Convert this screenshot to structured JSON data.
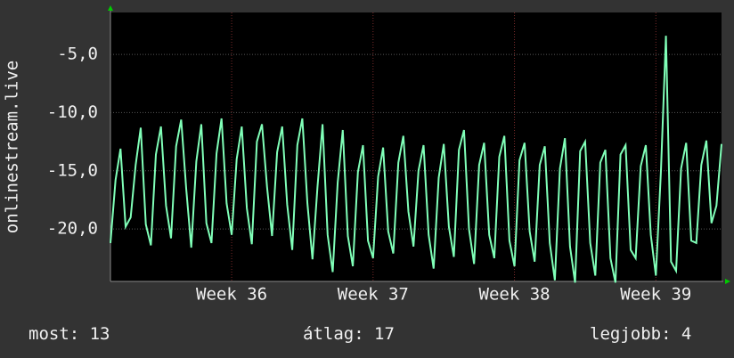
{
  "chart_data": {
    "type": "line",
    "y_label": "onlinestream.live",
    "ylim": [
      -24.5,
      -1.4
    ],
    "yticks": [
      {
        "value": -20,
        "label": "-20,0"
      },
      {
        "value": -15,
        "label": "-15,0"
      },
      {
        "value": -10,
        "label": "-10,0"
      },
      {
        "value": -5,
        "label": "-5,0"
      }
    ],
    "categories": [
      null,
      null,
      null,
      null,
      null,
      null,
      null,
      null,
      null,
      null,
      null,
      null,
      null,
      null,
      null,
      null,
      null,
      null,
      null,
      null,
      null,
      null,
      null,
      null,
      "Week 36",
      null,
      null,
      null,
      null,
      null,
      null,
      null,
      null,
      null,
      null,
      null,
      null,
      null,
      null,
      null,
      null,
      null,
      null,
      null,
      null,
      null,
      null,
      null,
      null,
      null,
      null,
      null,
      "Week 37",
      null,
      null,
      null,
      null,
      null,
      null,
      null,
      null,
      null,
      null,
      null,
      null,
      null,
      null,
      null,
      null,
      null,
      null,
      null,
      null,
      null,
      null,
      null,
      null,
      null,
      null,
      null,
      "Week 38",
      null,
      null,
      null,
      null,
      null,
      null,
      null,
      null,
      null,
      null,
      null,
      null,
      null,
      null,
      null,
      null,
      null,
      null,
      null,
      null,
      null,
      null,
      null,
      null,
      null,
      null,
      null,
      "Week 39",
      null,
      null,
      null,
      null,
      null,
      null,
      null,
      null,
      null,
      null,
      null,
      null,
      null
    ],
    "series": [
      {
        "color": "#80ffb8",
        "values": [
          -21.2,
          -15.8,
          -13.1,
          -19.8,
          -19.0,
          -14.5,
          -11.3,
          -19.6,
          -21.4,
          -13.6,
          -11.2,
          -18.0,
          -20.8,
          -12.9,
          -10.6,
          -16.5,
          -21.6,
          -14.2,
          -11.0,
          -19.5,
          -21.2,
          -13.5,
          -10.5,
          -17.8,
          -20.5,
          -14.0,
          -11.2,
          -18.2,
          -21.3,
          -12.5,
          -11.0,
          -16.4,
          -20.6,
          -13.4,
          -11.2,
          -17.9,
          -21.8,
          -12.8,
          -10.5,
          -17.8,
          -22.6,
          -16.4,
          -11.0,
          -20.5,
          -23.7,
          -16.0,
          -11.5,
          -20.6,
          -23.2,
          -15.1,
          -12.8,
          -21.0,
          -22.5,
          -15.5,
          -13.0,
          -20.2,
          -22.1,
          -14.3,
          -12.0,
          -18.5,
          -21.5,
          -15.0,
          -12.8,
          -20.5,
          -23.4,
          -15.6,
          -12.7,
          -19.8,
          -22.4,
          -13.2,
          -11.5,
          -20.0,
          -23.0,
          -14.5,
          -12.6,
          -20.5,
          -22.5,
          -13.8,
          -12.0,
          -21.0,
          -23.2,
          -14.1,
          -12.6,
          -20.2,
          -22.8,
          -14.5,
          -12.9,
          -21.2,
          -24.4,
          -14.8,
          -12.2,
          -21.5,
          -24.6,
          -13.3,
          -12.5,
          -21.2,
          -24.0,
          -14.3,
          -13.2,
          -22.5,
          -24.6,
          -13.6,
          -12.8,
          -21.8,
          -22.5,
          -14.6,
          -12.8,
          -20.5,
          -24.0,
          -15.0,
          -3.4,
          -22.8,
          -23.6,
          -14.8,
          -12.6,
          -21.0,
          -21.2,
          -14.5,
          -12.4,
          -19.5,
          -18.0,
          -12.7
        ]
      }
    ],
    "stats": [
      {
        "label": "most:",
        "value": 13
      },
      {
        "label": "átlag:",
        "value": 17
      },
      {
        "label": "legjobb:",
        "value": 4
      }
    ]
  }
}
